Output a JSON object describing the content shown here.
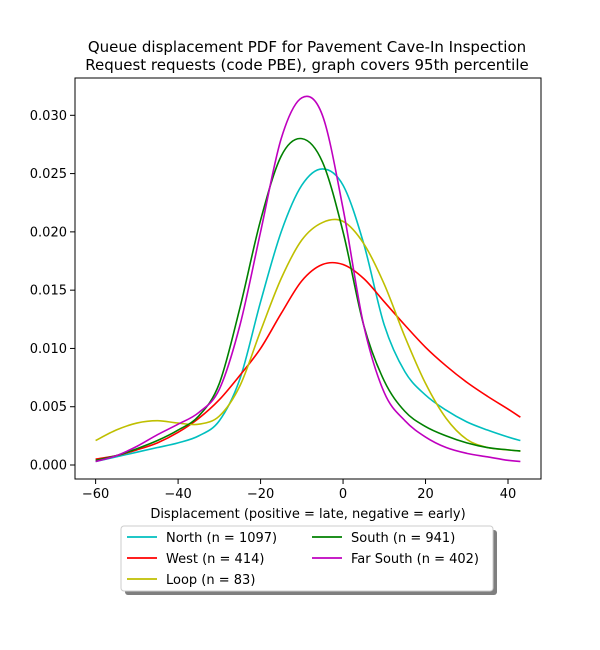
{
  "chart_data": {
    "type": "line",
    "title_lines": [
      "Queue displacement PDF for Pavement Cave-In Inspection",
      "Request  requests (code PBE), graph covers 95th percentile"
    ],
    "xlabel": "Displacement (positive = late, negative = early)",
    "ylabel": "",
    "xlim": [
      -65,
      48
    ],
    "ylim": [
      -0.0012,
      0.0332
    ],
    "x_ticks": [
      -60,
      -40,
      -20,
      0,
      20,
      40
    ],
    "x_tick_labels": [
      "−60",
      "−40",
      "−20",
      "0",
      "20",
      "40"
    ],
    "y_ticks": [
      0.0,
      0.005,
      0.01,
      0.015,
      0.02,
      0.025,
      0.03
    ],
    "y_tick_labels": [
      "0.000",
      "0.005",
      "0.010",
      "0.015",
      "0.020",
      "0.025",
      "0.030"
    ],
    "grid": false,
    "legend_placement": "below plot, two columns",
    "x": [
      -60,
      -55,
      -50,
      -45,
      -40,
      -35,
      -30,
      -25,
      -20,
      -15,
      -10,
      -5,
      0,
      5,
      10,
      15,
      20,
      25,
      30,
      35,
      40,
      43
    ],
    "series": [
      {
        "name": "North (n = 1097)",
        "color": "#00bfbf",
        "values": [
          0.0003,
          0.0007,
          0.0011,
          0.0015,
          0.0019,
          0.0025,
          0.0038,
          0.0074,
          0.014,
          0.02,
          0.024,
          0.0254,
          0.024,
          0.019,
          0.012,
          0.008,
          0.006,
          0.0047,
          0.0037,
          0.003,
          0.0024,
          0.0021
        ]
      },
      {
        "name": "West (n = 414)",
        "color": "#ff0000",
        "values": [
          0.0005,
          0.0008,
          0.0013,
          0.0019,
          0.0028,
          0.004,
          0.0056,
          0.0077,
          0.01,
          0.013,
          0.0158,
          0.0172,
          0.0172,
          0.016,
          0.014,
          0.012,
          0.0101,
          0.0085,
          0.0071,
          0.0059,
          0.0048,
          0.0041
        ]
      },
      {
        "name": "Loop (n = 83)",
        "color": "#bfbf00",
        "values": [
          0.0021,
          0.003,
          0.0036,
          0.0038,
          0.0036,
          0.0035,
          0.0042,
          0.0068,
          0.0115,
          0.016,
          0.0193,
          0.0208,
          0.0209,
          0.019,
          0.0155,
          0.011,
          0.007,
          0.004,
          0.0022,
          0.0015,
          0.0013,
          0.0012
        ]
      },
      {
        "name": "South (n = 941)",
        "color": "#008000",
        "values": [
          0.0004,
          0.0008,
          0.0014,
          0.0021,
          0.003,
          0.0042,
          0.007,
          0.0135,
          0.021,
          0.0265,
          0.028,
          0.026,
          0.02,
          0.012,
          0.0072,
          0.0046,
          0.0033,
          0.0025,
          0.0019,
          0.0015,
          0.0013,
          0.0012
        ]
      },
      {
        "name": "Far South (n = 402)",
        "color": "#bf00bf",
        "values": [
          0.0003,
          0.0008,
          0.0016,
          0.0026,
          0.0035,
          0.0045,
          0.0065,
          0.012,
          0.02,
          0.028,
          0.0315,
          0.03,
          0.022,
          0.012,
          0.0062,
          0.0038,
          0.0024,
          0.0015,
          0.001,
          0.0007,
          0.0004,
          0.0003
        ]
      }
    ]
  }
}
